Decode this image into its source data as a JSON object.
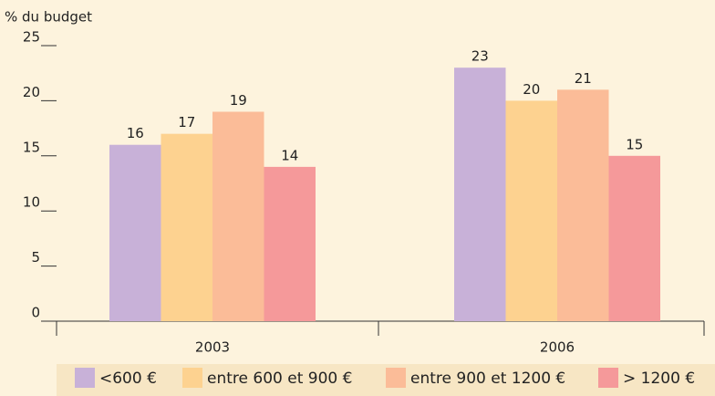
{
  "chart_data": {
    "type": "bar",
    "y_label": "% du budget",
    "categories": [
      "2003",
      "2006"
    ],
    "series": [
      {
        "name": "<600 €",
        "color": "#c8b1d8",
        "values": [
          16,
          23
        ]
      },
      {
        "name": "entre 600 et 900 €",
        "color": "#fdd290",
        "values": [
          17,
          20
        ]
      },
      {
        "name": "entre 900 et 1200 €",
        "color": "#fbbc98",
        "values": [
          19,
          21
        ]
      },
      {
        "name": "> 1200 €",
        "color": "#f5999a",
        "values": [
          14,
          15
        ]
      }
    ],
    "ylim": [
      0,
      25
    ],
    "yticks": [
      0,
      5,
      10,
      15,
      20,
      25
    ],
    "legend": "bottom"
  }
}
